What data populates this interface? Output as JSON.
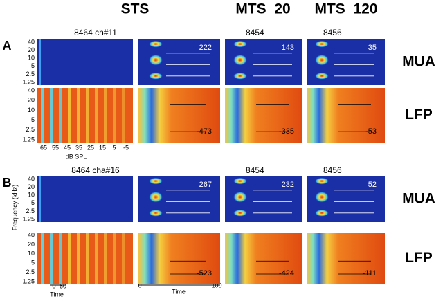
{
  "columns": [
    "STS",
    "MTS_20",
    "MTS_120"
  ],
  "panels": [
    {
      "label": "A",
      "recordings": [
        "8464 ch#11",
        "8454",
        "8456"
      ],
      "rows": [
        {
          "label": "MUA",
          "values": [
            222,
            143,
            35
          ]
        },
        {
          "label": "LFP",
          "values": [
            -473,
            -335,
            -53
          ]
        }
      ]
    },
    {
      "label": "B",
      "recordings": [
        "8464 cha#16",
        "8454",
        "8456"
      ],
      "rows": [
        {
          "label": "MUA",
          "values": [
            267,
            232,
            52
          ]
        },
        {
          "label": "LFP",
          "values": [
            -523,
            -424,
            -111
          ]
        }
      ]
    }
  ],
  "frequency_ticks": [
    40,
    20,
    10,
    5,
    2.5,
    1.25
  ],
  "frequency_label": "Frequency (kHz)",
  "spl_ticks": [
    65,
    55,
    45,
    35,
    25,
    15,
    5,
    -5
  ],
  "spl_label": "dB SPL",
  "time_axis_short": {
    "ticks": [
      0,
      50
    ],
    "label": "Time"
  },
  "time_axis_long": {
    "ticks": [
      0,
      100
    ],
    "label": "Time"
  }
}
